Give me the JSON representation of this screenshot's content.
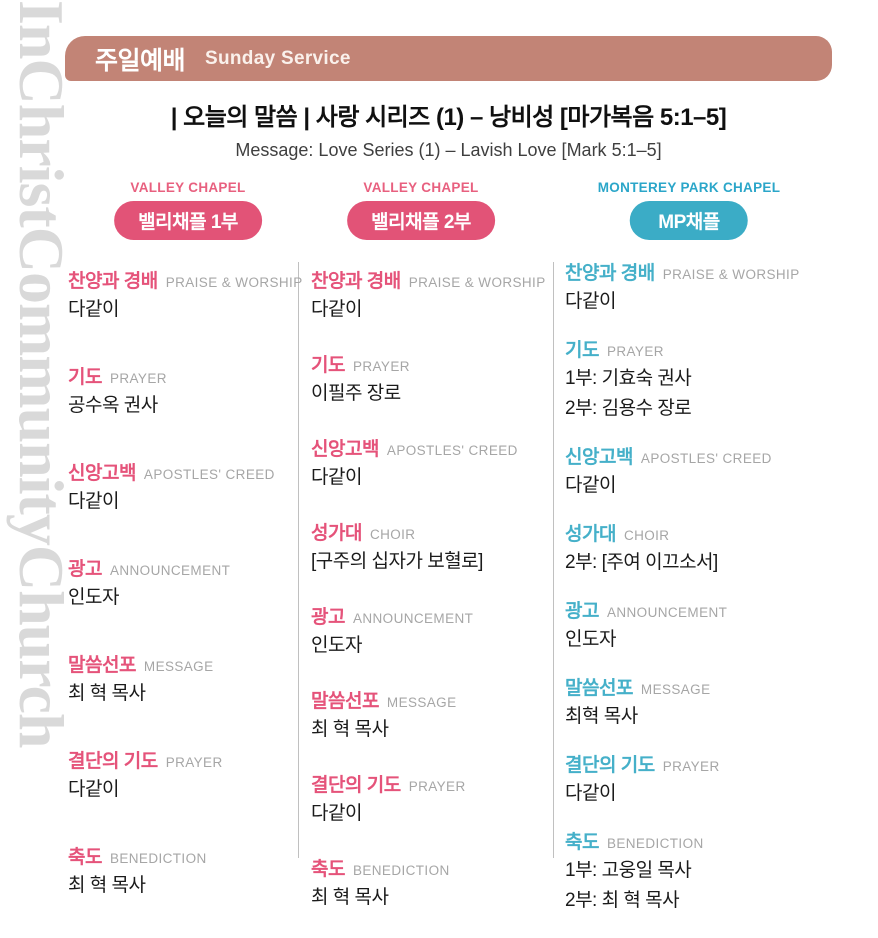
{
  "watermark": "InChristCommunityChurch",
  "header": {
    "title_ko": "주일예배",
    "title_en": "Sunday Service"
  },
  "message": {
    "title_ko": "| 오늘의 말씀 | 사랑 시리즈 (1) – 낭비성 [마가복음 5:1–5]",
    "title_en": "Message:  Love Series (1) – Lavish Love [Mark 5:1–5]"
  },
  "colors": {
    "header_bar": "#c28476",
    "accent_pink": "#e25377",
    "accent_teal": "#3bacc6",
    "caption_gray": "#a6a6a6",
    "divider_gray": "#c0c0c0",
    "watermark_gray": "#d9d9d9",
    "body_text": "#1b1b1b"
  },
  "columns": [
    {
      "chapel_caption": "VALLEY CHAPEL",
      "badge": "밸리채플 1부",
      "theme": "pink",
      "items": [
        {
          "ko": "찬양과 경배",
          "en": "PRAISE & WORSHIP",
          "who": [
            "다같이"
          ]
        },
        {
          "ko": "기도",
          "en": "PRAYER",
          "who": [
            "공수옥 권사"
          ]
        },
        {
          "ko": "신앙고백",
          "en": "APOSTLES' CREED",
          "who": [
            "다같이"
          ]
        },
        {
          "ko": "광고",
          "en": "ANNOUNCEMENT",
          "who": [
            "인도자"
          ]
        },
        {
          "ko": "말씀선포",
          "en": "MESSAGE",
          "who": [
            "최 혁 목사"
          ]
        },
        {
          "ko": "결단의 기도",
          "en": "PRAYER",
          "who": [
            "다같이"
          ]
        },
        {
          "ko": "축도",
          "en": "BENEDICTION",
          "who": [
            "최 혁 목사"
          ]
        }
      ]
    },
    {
      "chapel_caption": "VALLEY CHAPEL",
      "badge": "밸리채플 2부",
      "theme": "pink",
      "items": [
        {
          "ko": "찬양과 경배",
          "en": "PRAISE & WORSHIP",
          "who": [
            "다같이"
          ]
        },
        {
          "ko": "기도",
          "en": "PRAYER",
          "who": [
            "이필주 장로"
          ]
        },
        {
          "ko": "신앙고백",
          "en": "APOSTLES' CREED",
          "who": [
            "다같이"
          ]
        },
        {
          "ko": "성가대",
          "en": "CHOIR",
          "who": [
            "[구주의 십자가 보혈로]"
          ]
        },
        {
          "ko": "광고",
          "en": "ANNOUNCEMENT",
          "who": [
            "인도자"
          ]
        },
        {
          "ko": "말씀선포",
          "en": "MESSAGE",
          "who": [
            "최 혁 목사"
          ]
        },
        {
          "ko": "결단의 기도",
          "en": "PRAYER",
          "who": [
            "다같이"
          ]
        },
        {
          "ko": "축도",
          "en": "BENEDICTION",
          "who": [
            "최 혁 목사"
          ]
        }
      ]
    },
    {
      "chapel_caption": "MONTEREY PARK CHAPEL",
      "badge": "MP채플",
      "theme": "teal",
      "items": [
        {
          "ko": "찬양과 경배",
          "en": "PRAISE & WORSHIP",
          "who": [
            "다같이"
          ]
        },
        {
          "ko": "기도",
          "en": "PRAYER",
          "who": [
            "1부:  기효숙 권사",
            "2부:  김용수 장로"
          ]
        },
        {
          "ko": "신앙고백",
          "en": "APOSTLES' CREED",
          "who": [
            "다같이"
          ]
        },
        {
          "ko": "성가대",
          "en": "CHOIR",
          "who": [
            "2부: [주여 이끄소서]"
          ]
        },
        {
          "ko": "광고",
          "en": "ANNOUNCEMENT",
          "who": [
            "인도자"
          ]
        },
        {
          "ko": "말씀선포",
          "en": "MESSAGE",
          "who": [
            "최혁 목사"
          ]
        },
        {
          "ko": "결단의 기도",
          "en": "PRAYER",
          "who": [
            "다같이"
          ]
        },
        {
          "ko": "축도",
          "en": "BENEDICTION",
          "who": [
            "1부: 고웅일 목사",
            "2부: 최 혁 목사"
          ]
        }
      ]
    }
  ]
}
